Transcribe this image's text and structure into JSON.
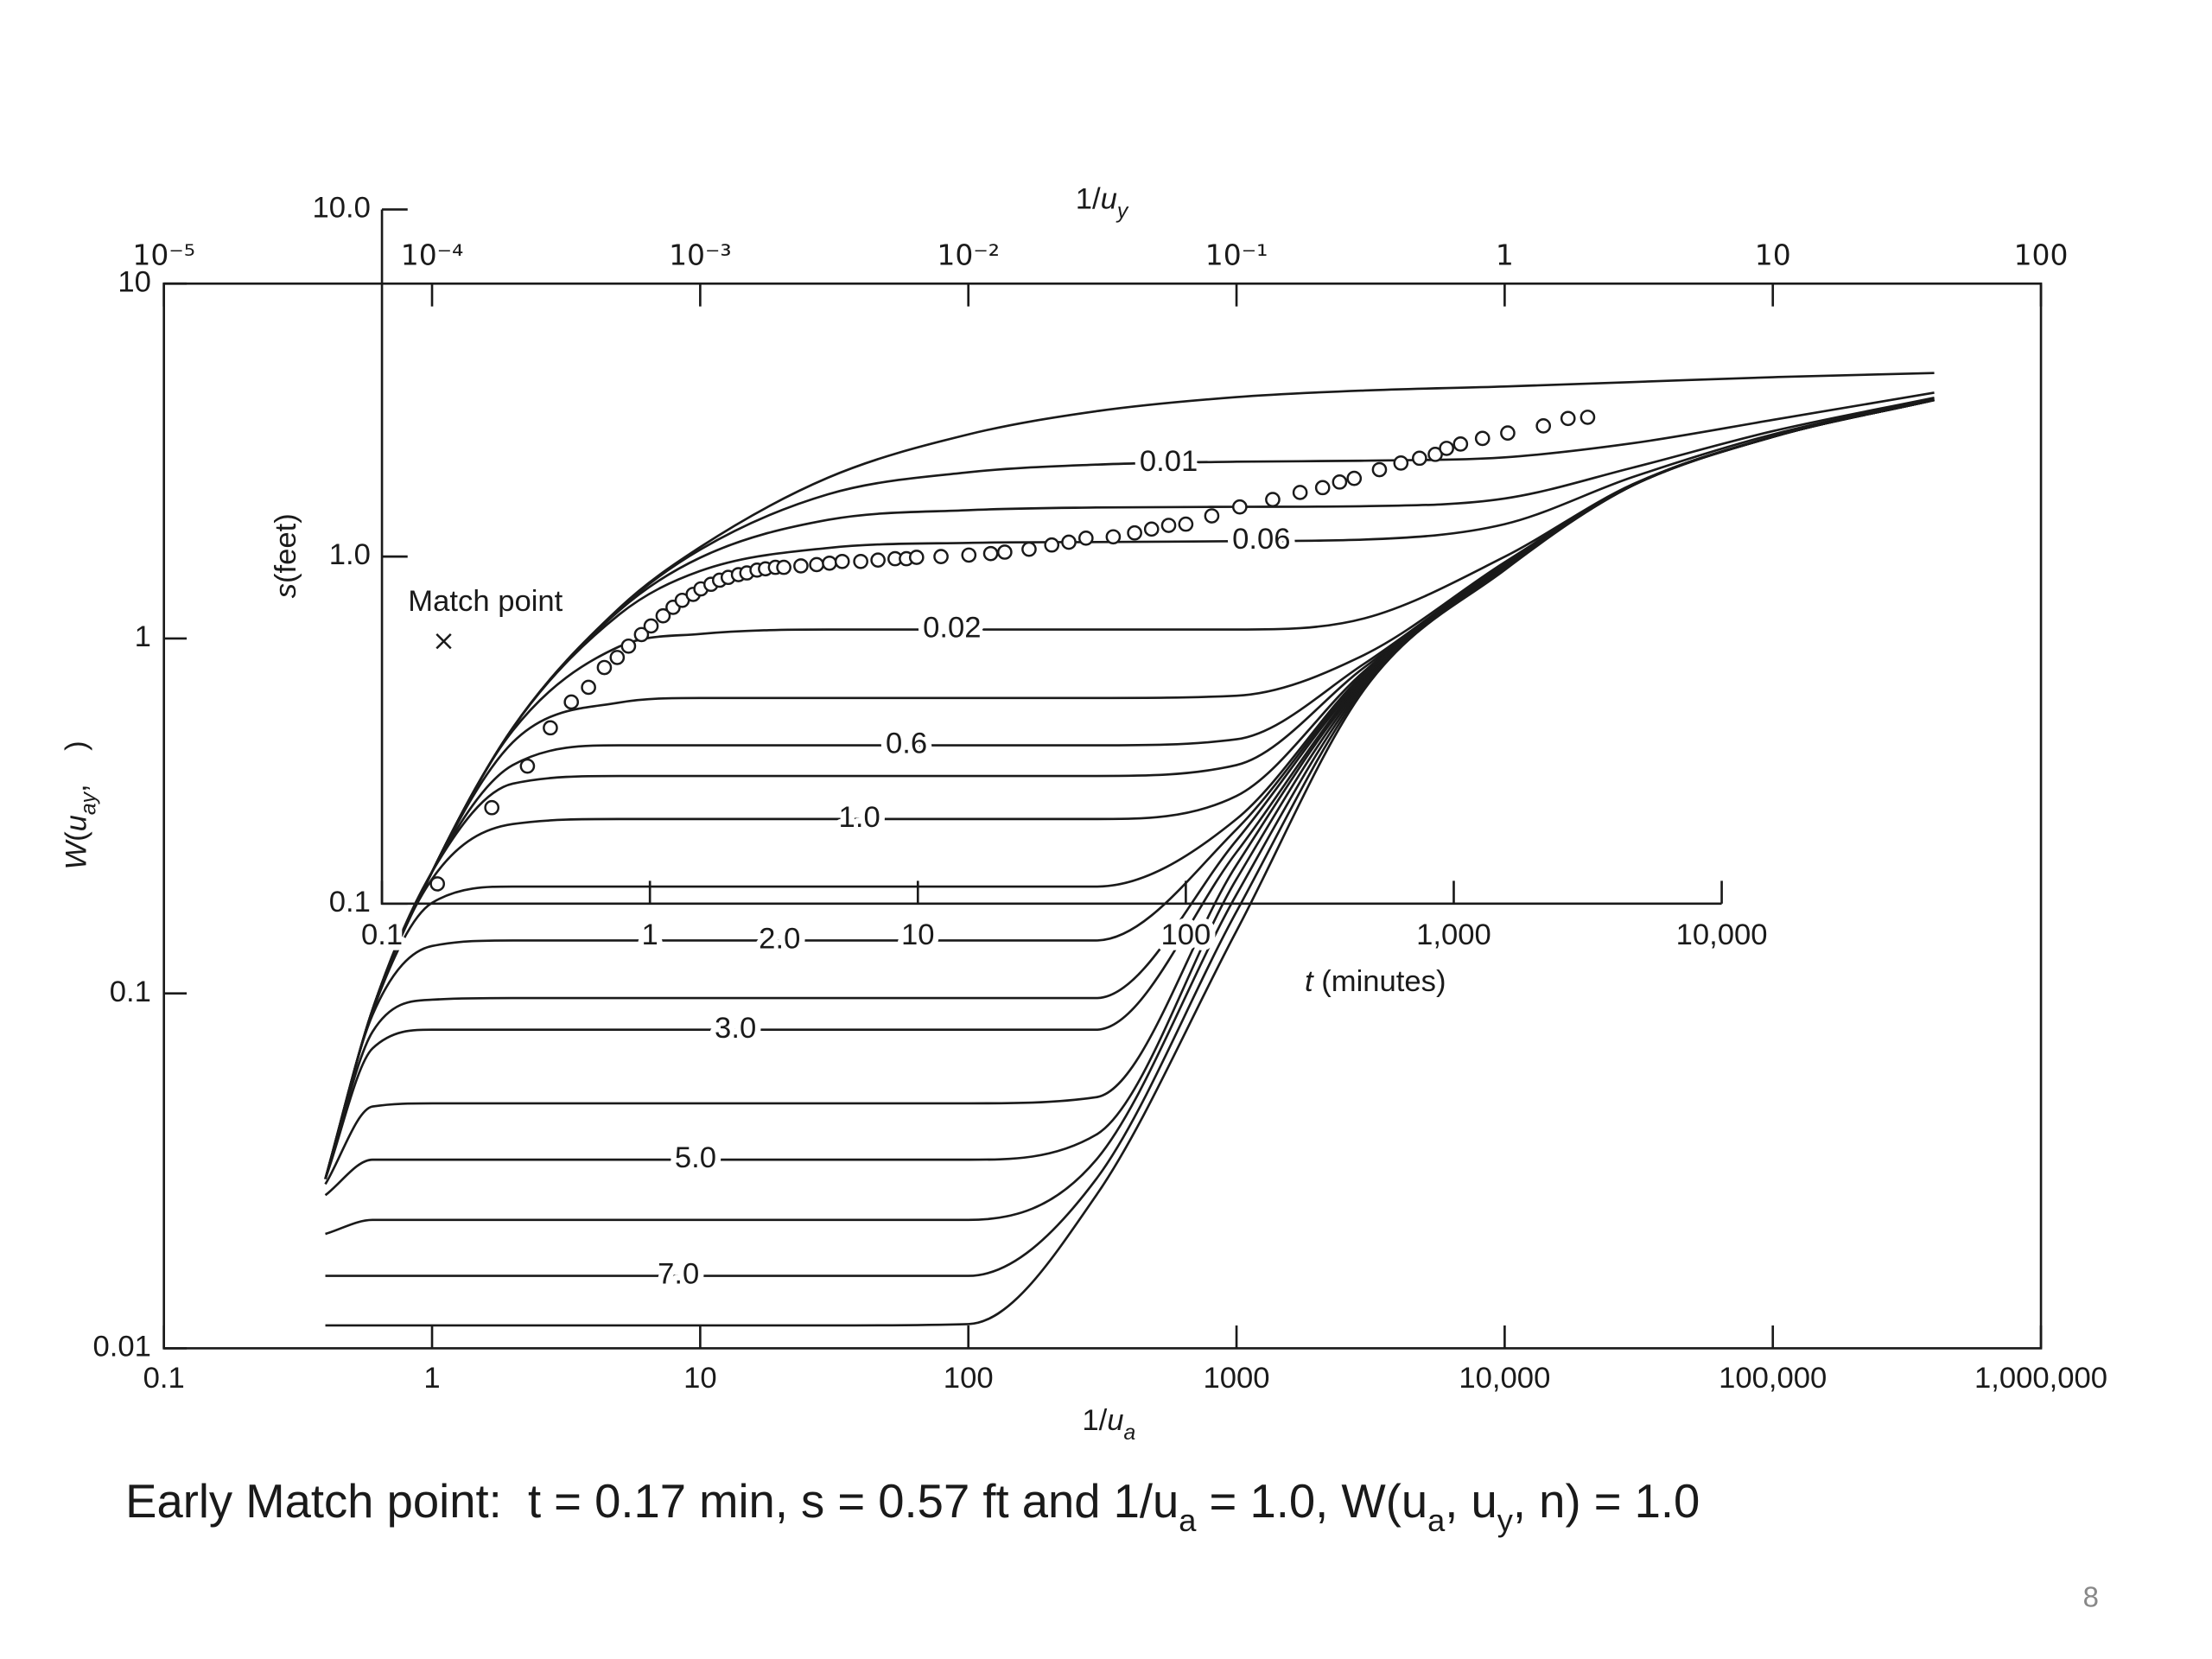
{
  "chart_data": [
    {
      "type": "line",
      "x_label": [
        "1/",
        "u",
        "a"
      ],
      "x2_label": [
        "1/",
        "u",
        "y"
      ],
      "y_label": [
        "W",
        "(",
        "u",
        "ay",
        ",    )"
      ],
      "log_x": true,
      "log_y": true,
      "color": "#1a1a1a",
      "xlim": [
        0.1,
        1000000
      ],
      "xticks": [
        0.1,
        1,
        10,
        100,
        1000,
        {
          "value": 10000,
          "label": "10,000"
        },
        {
          "value": 100000,
          "label": "100,000"
        },
        {
          "value": 1000000,
          "label": "1,000,000"
        }
      ],
      "x2lim": [
        1e-05,
        100
      ],
      "x2ticks": [
        {
          "value": 1e-05,
          "label": "10⁻⁵"
        },
        {
          "value": 0.0001,
          "label": "10⁻⁴"
        },
        {
          "value": 0.001,
          "label": "10⁻³"
        },
        {
          "value": 0.01,
          "label": "10⁻²"
        },
        {
          "value": 0.1,
          "label": "10⁻¹"
        },
        1,
        10,
        100
      ],
      "ylim": [
        0.01,
        10
      ],
      "yticks": [
        0.01,
        0.1,
        1,
        10
      ],
      "x": [
        0.4,
        0.6,
        1,
        2,
        5,
        10,
        30,
        100,
        300,
        1000,
        3000,
        10000,
        30000,
        100000,
        400000
      ],
      "series": [
        {
          "values": [
            0.03,
            0.09,
            0.22,
            0.56,
            1.22,
            1.81,
            2.84,
            3.76,
            4.37,
            4.79,
            5.0,
            5.13,
            5.28,
            5.45,
            5.6
          ]
        },
        {
          "name": "0.01",
          "values": [
            0.03,
            0.09,
            0.22,
            0.56,
            1.21,
            1.78,
            2.55,
            2.94,
            3.09,
            3.15,
            3.17,
            3.24,
            3.55,
            4.13,
            4.93
          ]
        },
        {
          "values": [
            0.03,
            0.09,
            0.22,
            0.56,
            1.2,
            1.69,
            2.16,
            2.3,
            2.34,
            2.35,
            2.36,
            2.48,
            3.03,
            3.84,
            4.77
          ]
        },
        {
          "name": "0.06",
          "values": [
            0.03,
            0.09,
            0.22,
            0.56,
            1.17,
            1.55,
            1.8,
            1.86,
            1.87,
            1.88,
            1.9,
            2.1,
            2.85,
            3.76,
            4.73
          ]
        },
        {
          "name": "0.02",
          "values": [
            0.03,
            0.09,
            0.22,
            0.55,
            0.95,
            1.03,
            1.06,
            1.06,
            1.06,
            1.06,
            1.14,
            1.7,
            2.72,
            3.71,
            4.7
          ]
        },
        {
          "values": [
            0.03,
            0.09,
            0.22,
            0.51,
            0.66,
            0.68,
            0.68,
            0.68,
            0.68,
            0.69,
            0.9,
            1.64,
            2.7,
            3.7,
            4.7
          ]
        },
        {
          "name": "0.6",
          "values": [
            0.03,
            0.09,
            0.22,
            0.44,
            0.5,
            0.5,
            0.5,
            0.5,
            0.5,
            0.52,
            0.85,
            1.63,
            2.7,
            3.7,
            4.7
          ]
        },
        {
          "values": [
            0.03,
            0.09,
            0.22,
            0.39,
            0.41,
            0.41,
            0.41,
            0.41,
            0.41,
            0.44,
            0.83,
            1.62,
            2.7,
            3.7,
            4.7
          ]
        },
        {
          "name": "1.0",
          "values": [
            0.03,
            0.09,
            0.21,
            0.3,
            0.31,
            0.31,
            0.31,
            0.31,
            0.31,
            0.36,
            0.81,
            1.61,
            2.7,
            3.7,
            4.7
          ]
        },
        {
          "values": [
            0.03,
            0.089,
            0.18,
            0.2,
            0.2,
            0.2,
            0.2,
            0.2,
            0.2,
            0.31,
            0.8,
            1.6,
            2.7,
            3.7,
            4.7
          ]
        },
        {
          "name": "2.0",
          "values": [
            0.03,
            0.087,
            0.136,
            0.141,
            0.141,
            0.141,
            0.141,
            0.141,
            0.141,
            0.29,
            0.79,
            1.6,
            2.7,
            3.7,
            4.7
          ]
        },
        {
          "values": [
            0.03,
            0.078,
            0.096,
            0.097,
            0.097,
            0.097,
            0.097,
            0.097,
            0.097,
            0.27,
            0.78,
            1.59,
            2.7,
            3.7,
            4.7
          ]
        },
        {
          "name": "3.0",
          "values": [
            0.03,
            0.07,
            0.079,
            0.079,
            0.079,
            0.079,
            0.079,
            0.079,
            0.079,
            0.25,
            0.77,
            1.59,
            2.7,
            3.7,
            4.7
          ]
        },
        {
          "values": [
            0.029,
            0.048,
            0.049,
            0.049,
            0.049,
            0.049,
            0.049,
            0.049,
            0.051,
            0.23,
            0.76,
            1.58,
            2.7,
            3.7,
            4.7
          ]
        },
        {
          "name": "5.0",
          "values": [
            0.027,
            0.034,
            0.034,
            0.034,
            0.034,
            0.034,
            0.034,
            0.034,
            0.04,
            0.21,
            0.75,
            1.58,
            2.7,
            3.7,
            4.7
          ]
        },
        {
          "values": [
            0.021,
            0.023,
            0.023,
            0.023,
            0.023,
            0.023,
            0.023,
            0.023,
            0.034,
            0.19,
            0.74,
            1.57,
            2.7,
            3.7,
            4.7
          ]
        },
        {
          "name": "7.0",
          "values": [
            0.016,
            0.016,
            0.016,
            0.016,
            0.016,
            0.016,
            0.016,
            0.016,
            0.03,
            0.17,
            0.73,
            1.57,
            2.7,
            3.7,
            4.7
          ]
        },
        {
          "values": [
            0.0116,
            0.0116,
            0.0116,
            0.0116,
            0.0116,
            0.0116,
            0.0116,
            0.0117,
            0.027,
            0.15,
            0.72,
            1.56,
            2.7,
            3.7,
            4.7
          ]
        }
      ]
    },
    {
      "type": "scatter",
      "x_label": [
        "t",
        " (minutes)"
      ],
      "y_label": [
        "s",
        "(feet)"
      ],
      "log_x": true,
      "log_y": true,
      "color": "#1a1a1a",
      "xlim": [
        0.1,
        10000
      ],
      "xticks": [
        0.1,
        1,
        10,
        100,
        {
          "value": 1000,
          "label": "1,000"
        },
        {
          "value": 10000,
          "label": "10,000"
        }
      ],
      "ylim": [
        0.1,
        10
      ],
      "yticks": [
        0.1,
        {
          "value": 1,
          "label": "1.0"
        },
        {
          "value": 10,
          "label": "10.0"
        }
      ],
      "x": [
        0.161,
        0.257,
        0.349,
        0.425,
        0.509,
        0.59,
        0.676,
        0.755,
        0.832,
        0.93,
        1.01,
        1.12,
        1.22,
        1.32,
        1.45,
        1.55,
        1.69,
        1.82,
        1.96,
        2.14,
        2.3,
        2.51,
        2.7,
        2.94,
        3.16,
        3.66,
        4.19,
        4.68,
        5.22,
        6.12,
        7.1,
        8.22,
        9.06,
        9.89,
        12.2,
        15.5,
        18.7,
        21.1,
        26,
        31.6,
        36.6,
        42.4,
        53.6,
        64.4,
        74.5,
        86.3,
        100,
        125,
        159,
        211,
        267,
        324,
        375,
        425,
        528,
        635,
        745,
        853,
        940,
        1060,
        1280,
        1590,
        2160,
        2670,
        3160
      ],
      "values": [
        0.114,
        0.189,
        0.249,
        0.321,
        0.381,
        0.42,
        0.479,
        0.512,
        0.552,
        0.596,
        0.631,
        0.675,
        0.714,
        0.748,
        0.778,
        0.807,
        0.832,
        0.855,
        0.871,
        0.887,
        0.897,
        0.914,
        0.922,
        0.931,
        0.931,
        0.94,
        0.948,
        0.957,
        0.968,
        0.968,
        0.977,
        0.986,
        0.986,
        0.995,
        1,
        1.01,
        1.02,
        1.03,
        1.05,
        1.08,
        1.1,
        1.13,
        1.14,
        1.17,
        1.2,
        1.23,
        1.24,
        1.31,
        1.39,
        1.46,
        1.53,
        1.58,
        1.64,
        1.68,
        1.78,
        1.86,
        1.92,
        1.97,
        2.05,
        2.11,
        2.19,
        2.27,
        2.38,
        2.5,
        2.52
      ],
      "annotation": {
        "text": "Match point",
        "x": 0.17,
        "y": 0.57
      }
    }
  ],
  "caption": [
    "Early Match point:  t = 0.17 min, s = 0.57 ft and 1/u",
    "a",
    " = 1.0, W(u",
    "a",
    ", u",
    "y",
    ", n) = 1.0"
  ],
  "page_number": 8
}
